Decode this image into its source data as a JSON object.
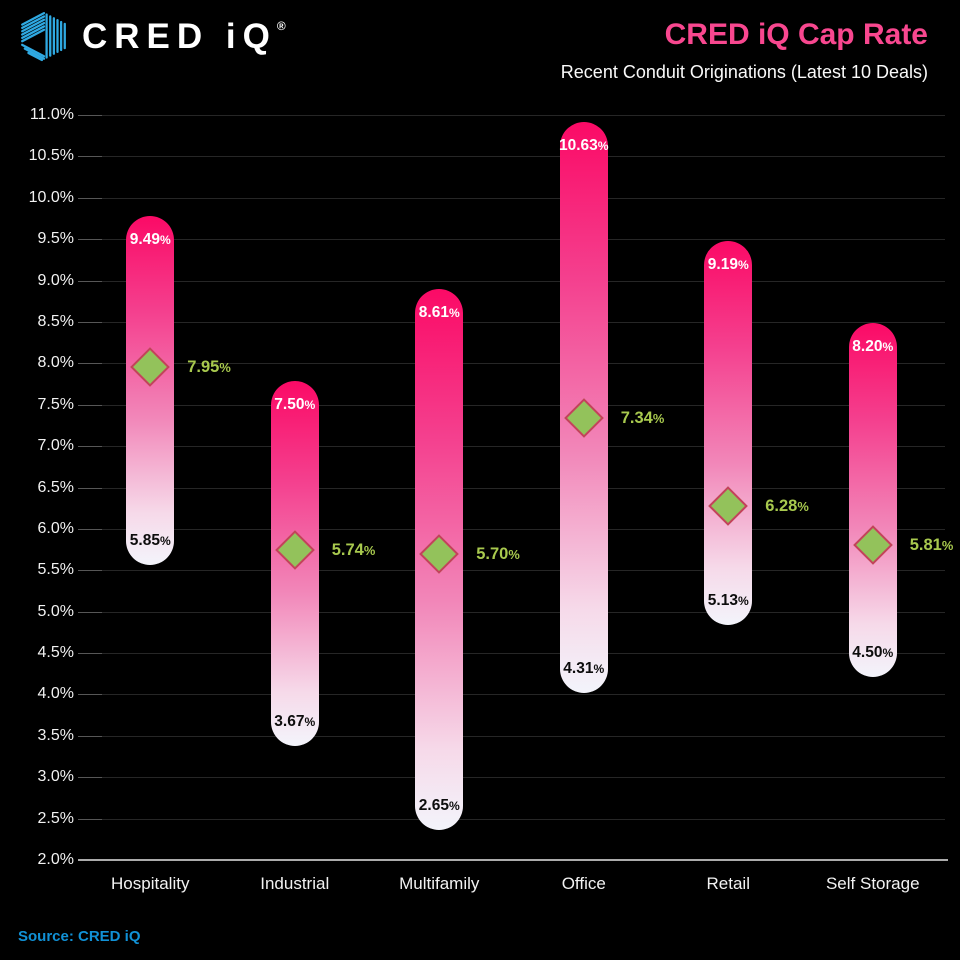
{
  "header": {
    "logo": {
      "icon": "cred-iq-cube-icon",
      "brand": "CRED iQ",
      "registered_mark": "®",
      "icon_color": "#2FA9E2"
    },
    "title": "CRED iQ Cap Rate",
    "subtitle": "Recent Conduit Originations (Latest 10 Deals)"
  },
  "chart_data": {
    "type": "bar",
    "variant": "floating-range-capsule",
    "title": "CRED iQ Cap Rate",
    "subtitle": "Recent Conduit Originations (Latest 10 Deals)",
    "categories": [
      "Hospitality",
      "Industrial",
      "Multifamily",
      "Office",
      "Retail",
      "Self Storage"
    ],
    "series": [
      {
        "name": "Max",
        "values": [
          9.49,
          7.5,
          8.61,
          10.63,
          9.19,
          8.2
        ],
        "labels": [
          "9.49%",
          "7.50%",
          "8.61%",
          "10.63%",
          "9.19%",
          "8.20%"
        ]
      },
      {
        "name": "Min",
        "values": [
          5.85,
          3.67,
          2.65,
          4.31,
          5.13,
          4.5
        ],
        "labels": [
          "5.85%",
          "3.67%",
          "2.65%",
          "4.31%",
          "5.13%",
          "4.50%"
        ]
      },
      {
        "name": "Average",
        "values": [
          7.95,
          5.74,
          5.7,
          7.34,
          6.28,
          5.81
        ],
        "labels": [
          "7.95%",
          "5.74%",
          "5.70%",
          "7.34%",
          "6.28%",
          "5.81%"
        ]
      }
    ],
    "ylim": [
      2.0,
      11.0
    ],
    "ytick_step": 0.5,
    "yticks": [
      "11.0%",
      "10.5%",
      "10.0%",
      "9.5%",
      "9.0%",
      "8.5%",
      "8.0%",
      "7.5%",
      "7.0%",
      "6.5%",
      "6.0%",
      "5.5%",
      "5.0%",
      "4.5%",
      "4.0%",
      "3.5%",
      "3.0%",
      "2.5%",
      "2.0%"
    ],
    "grid": true,
    "legend": "none",
    "marker": "diamond"
  },
  "footer": {
    "source": "Source: CRED iQ"
  },
  "colors": {
    "background": "#000000",
    "title_pink": "#F8478F",
    "bar_gradient_top": "#FB0A66",
    "bar_gradient_bottom": "#F3F4FB",
    "diamond_fill": "#93C25B",
    "diamond_border": "#C5405C",
    "avg_label_green": "#A8C94E",
    "max_label": "#FFFFFF",
    "min_label": "#0D0D0D",
    "gridline": "#262626",
    "axis_line": "#ABABAB",
    "source_blue": "#1191D6",
    "logo_blue": "#2FA9E2"
  }
}
